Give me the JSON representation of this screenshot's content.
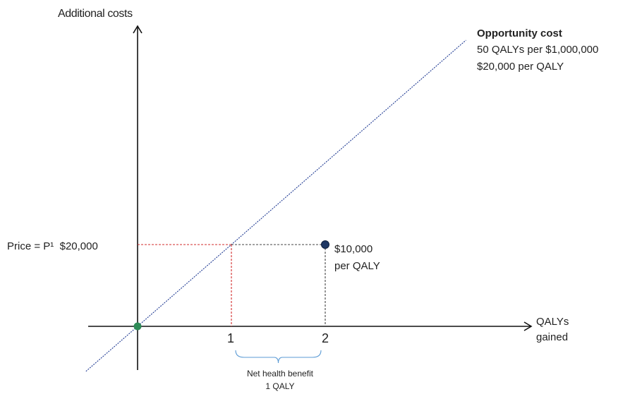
{
  "chart_data": {
    "type": "line",
    "ylabel": "Additional costs",
    "xlabel": [
      "QALYs",
      "gained"
    ],
    "x_ticks": [
      "1",
      "2"
    ],
    "y_tick_label": "Price = P¹  $20,000",
    "opportunity_cost": {
      "title": "Opportunity cost",
      "lines": [
        "50 QALYs per $1,000,000",
        "$20,000 per QALY"
      ],
      "slope_per_qaly": 20000
    },
    "points": [
      {
        "x": 0,
        "y": 0,
        "color": "#2e8b57"
      },
      {
        "x": 2,
        "y": 20000,
        "color": "#1f3864",
        "labels": [
          "$10,000",
          "per QALY"
        ]
      }
    ],
    "net_health_benefit": {
      "from_x": 1,
      "to_x": 2,
      "labels": [
        "Net health benefit",
        "1 QALY"
      ]
    },
    "colors": {
      "axis": "#111111",
      "threshold": "#1f3a93",
      "guide_red": "#d22b2b",
      "guide_dark": "#444444",
      "brace": "#5b9bd5"
    }
  }
}
